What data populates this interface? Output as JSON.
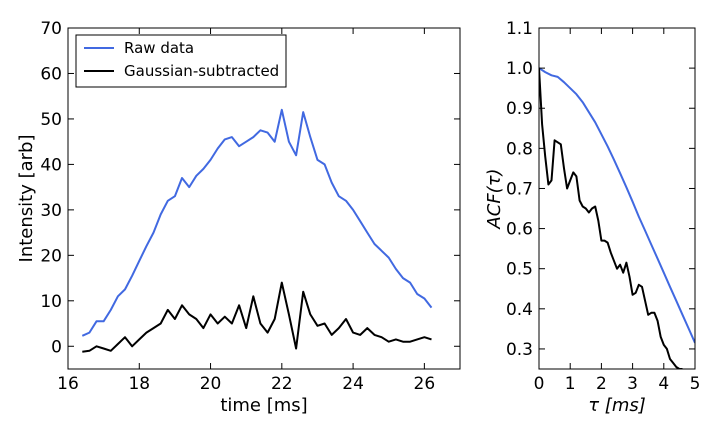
{
  "chart_data": [
    {
      "type": "line",
      "title": "",
      "xlabel": "time [ms]",
      "ylabel": "Intensity [arb]",
      "xlim": [
        16,
        27
      ],
      "ylim": [
        -5,
        70
      ],
      "xticks": [
        16,
        18,
        20,
        22,
        24,
        26
      ],
      "yticks": [
        0,
        10,
        20,
        30,
        40,
        50,
        60,
        70
      ],
      "x_tick_labels": [
        "16",
        "18",
        "20",
        "22",
        "24",
        "26"
      ],
      "y_tick_labels": [
        "0",
        "10",
        "20",
        "30",
        "40",
        "50",
        "60",
        "70"
      ],
      "grid": false,
      "legend": "top-left",
      "series": [
        {
          "name": "Raw data",
          "color": "#4169e1",
          "x": [
            16.4,
            16.6,
            16.8,
            17.0,
            17.2,
            17.4,
            17.6,
            17.8,
            18.0,
            18.2,
            18.4,
            18.6,
            18.8,
            19.0,
            19.2,
            19.4,
            19.6,
            19.8,
            20.0,
            20.2,
            20.4,
            20.6,
            20.8,
            21.0,
            21.2,
            21.4,
            21.6,
            21.8,
            22.0,
            22.2,
            22.4,
            22.6,
            22.8,
            23.0,
            23.2,
            23.4,
            23.6,
            23.8,
            24.0,
            24.2,
            24.4,
            24.6,
            24.8,
            25.0,
            25.2,
            25.4,
            25.6,
            25.8,
            26.0,
            26.2
          ],
          "y": [
            2.3,
            3.0,
            5.5,
            5.5,
            8.0,
            11.0,
            12.5,
            15.5,
            18.8,
            22.0,
            25.0,
            29.0,
            32.0,
            33.0,
            37.0,
            35.0,
            37.5,
            39.0,
            41.0,
            43.5,
            45.5,
            46.0,
            44.0,
            45.0,
            46.0,
            47.5,
            47.0,
            45.0,
            52.0,
            45.0,
            42.0,
            51.5,
            46.0,
            41.0,
            40.0,
            36.0,
            33.0,
            32.0,
            30.0,
            27.5,
            25.0,
            22.5,
            21.0,
            19.5,
            17.0,
            15.0,
            14.0,
            11.5,
            10.5,
            8.5
          ]
        },
        {
          "name": "Gaussian-subtracted",
          "color": "#000000",
          "x": [
            16.4,
            16.6,
            16.8,
            17.0,
            17.2,
            17.4,
            17.6,
            17.8,
            18.0,
            18.2,
            18.4,
            18.6,
            18.8,
            19.0,
            19.2,
            19.4,
            19.6,
            19.8,
            20.0,
            20.2,
            20.4,
            20.6,
            20.8,
            21.0,
            21.2,
            21.4,
            21.6,
            21.8,
            22.0,
            22.2,
            22.4,
            22.6,
            22.8,
            23.0,
            23.2,
            23.4,
            23.6,
            23.8,
            24.0,
            24.2,
            24.4,
            24.6,
            24.8,
            25.0,
            25.2,
            25.4,
            25.6,
            25.8,
            26.0,
            26.2
          ],
          "y": [
            -1.2,
            -1.0,
            0.0,
            -0.5,
            -1.0,
            0.5,
            2.0,
            0.0,
            1.5,
            3.0,
            4.0,
            5.0,
            8.0,
            6.0,
            9.0,
            7.0,
            6.0,
            4.0,
            7.0,
            5.0,
            6.5,
            5.0,
            9.0,
            4.0,
            11.0,
            5.0,
            3.0,
            6.0,
            14.0,
            7.0,
            -0.5,
            12.0,
            7.0,
            4.5,
            5.0,
            2.5,
            4.0,
            6.0,
            3.0,
            2.5,
            4.0,
            2.5,
            2.0,
            1.0,
            1.5,
            1.0,
            1.0,
            1.5,
            2.0,
            1.5
          ]
        }
      ]
    },
    {
      "type": "line",
      "title": "",
      "xlabel": "τ [ms]",
      "ylabel": "ACF(τ)",
      "xlim": [
        0,
        5
      ],
      "ylim": [
        0.25,
        1.1
      ],
      "xticks": [
        0,
        1,
        2,
        3,
        4,
        5
      ],
      "yticks": [
        0.3,
        0.4,
        0.5,
        0.6,
        0.7,
        0.8,
        0.9,
        1.0,
        1.1
      ],
      "x_tick_labels": [
        "0",
        "1",
        "2",
        "3",
        "4",
        "5"
      ],
      "y_tick_labels": [
        "0.3",
        "0.4",
        "0.5",
        "0.6",
        "0.7",
        "0.8",
        "0.9",
        "1.0",
        "1.1"
      ],
      "grid": false,
      "series": [
        {
          "color": "#4169e1",
          "x": [
            0.0,
            0.2,
            0.4,
            0.6,
            0.8,
            1.0,
            1.2,
            1.4,
            1.6,
            1.8,
            2.0,
            2.2,
            2.4,
            2.6,
            2.8,
            3.0,
            3.2,
            3.4,
            3.6,
            3.8,
            4.0,
            4.2,
            4.4,
            4.6,
            4.8,
            5.0
          ],
          "y": [
            1.0,
            0.99,
            0.982,
            0.978,
            0.965,
            0.95,
            0.935,
            0.915,
            0.89,
            0.865,
            0.835,
            0.805,
            0.772,
            0.738,
            0.703,
            0.667,
            0.63,
            0.595,
            0.56,
            0.525,
            0.49,
            0.455,
            0.42,
            0.385,
            0.35,
            0.315
          ]
        },
        {
          "color": "#000000",
          "x": [
            0.0,
            0.1,
            0.2,
            0.3,
            0.4,
            0.5,
            0.6,
            0.7,
            0.8,
            0.9,
            1.0,
            1.1,
            1.2,
            1.3,
            1.4,
            1.5,
            1.6,
            1.7,
            1.8,
            1.9,
            2.0,
            2.1,
            2.2,
            2.3,
            2.4,
            2.5,
            2.6,
            2.7,
            2.8,
            2.9,
            3.0,
            3.1,
            3.2,
            3.3,
            3.4,
            3.5,
            3.6,
            3.7,
            3.8,
            3.9,
            4.0,
            4.1,
            4.2,
            4.3,
            4.4,
            4.5,
            4.6
          ],
          "y": [
            1.0,
            0.86,
            0.78,
            0.71,
            0.72,
            0.82,
            0.815,
            0.81,
            0.75,
            0.7,
            0.72,
            0.74,
            0.73,
            0.67,
            0.655,
            0.65,
            0.64,
            0.65,
            0.655,
            0.62,
            0.57,
            0.57,
            0.565,
            0.54,
            0.52,
            0.5,
            0.51,
            0.49,
            0.515,
            0.48,
            0.435,
            0.44,
            0.46,
            0.455,
            0.42,
            0.385,
            0.39,
            0.39,
            0.37,
            0.33,
            0.31,
            0.3,
            0.275,
            0.265,
            0.255,
            0.25,
            0.25
          ]
        }
      ]
    }
  ]
}
